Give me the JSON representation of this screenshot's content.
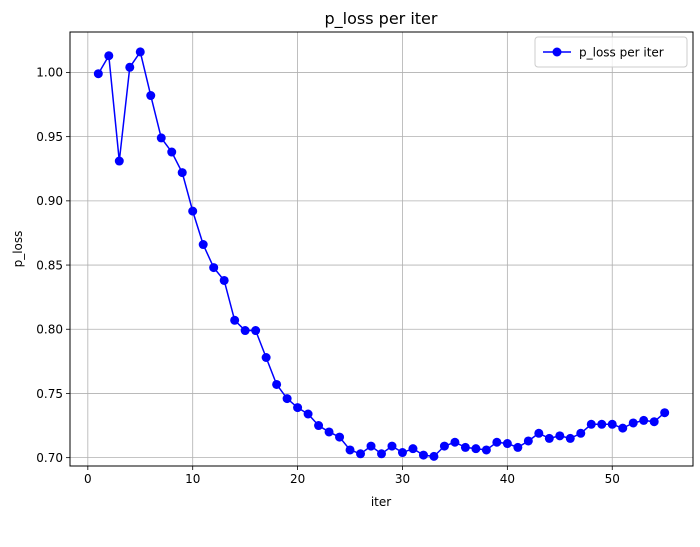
{
  "chart_data": {
    "type": "line",
    "title": "p_loss per iter",
    "xlabel": "iter",
    "ylabel": "p_loss",
    "xlim": [
      -1.7,
      57.7
    ],
    "ylim": [
      0.6935,
      1.0315
    ],
    "xticks": [
      0,
      10,
      20,
      30,
      40,
      50
    ],
    "xtick_labels": [
      "0",
      "10",
      "20",
      "30",
      "40",
      "50"
    ],
    "yticks": [
      0.7,
      0.75,
      0.8,
      0.85,
      0.9,
      0.95,
      1.0
    ],
    "ytick_labels": [
      "0.70",
      "0.75",
      "0.80",
      "0.85",
      "0.90",
      "0.95",
      "1.00"
    ],
    "grid": true,
    "legend_position": "top-right",
    "series": [
      {
        "name": "p_loss per iter",
        "color": "#0000ff",
        "marker": "circle",
        "x": [
          1,
          2,
          3,
          4,
          5,
          6,
          7,
          8,
          9,
          10,
          11,
          12,
          13,
          14,
          15,
          16,
          17,
          18,
          19,
          20,
          21,
          22,
          23,
          24,
          25,
          26,
          27,
          28,
          29,
          30,
          31,
          32,
          33,
          34,
          35,
          36,
          37,
          38,
          39,
          40,
          41,
          42,
          43,
          44,
          45,
          46,
          47,
          48,
          49,
          50,
          51,
          52,
          53,
          54,
          55
        ],
        "values": [
          0.999,
          1.013,
          0.931,
          1.004,
          1.016,
          0.982,
          0.949,
          0.938,
          0.922,
          0.892,
          0.866,
          0.848,
          0.838,
          0.807,
          0.799,
          0.799,
          0.778,
          0.757,
          0.746,
          0.739,
          0.734,
          0.725,
          0.72,
          0.716,
          0.706,
          0.703,
          0.709,
          0.703,
          0.709,
          0.704,
          0.707,
          0.702,
          0.701,
          0.709,
          0.712,
          0.708,
          0.707,
          0.706,
          0.712,
          0.711,
          0.708,
          0.713,
          0.719,
          0.715,
          0.717,
          0.715,
          0.719,
          0.726,
          0.726,
          0.726,
          0.723,
          0.727,
          0.729,
          0.728,
          0.735
        ]
      }
    ]
  }
}
